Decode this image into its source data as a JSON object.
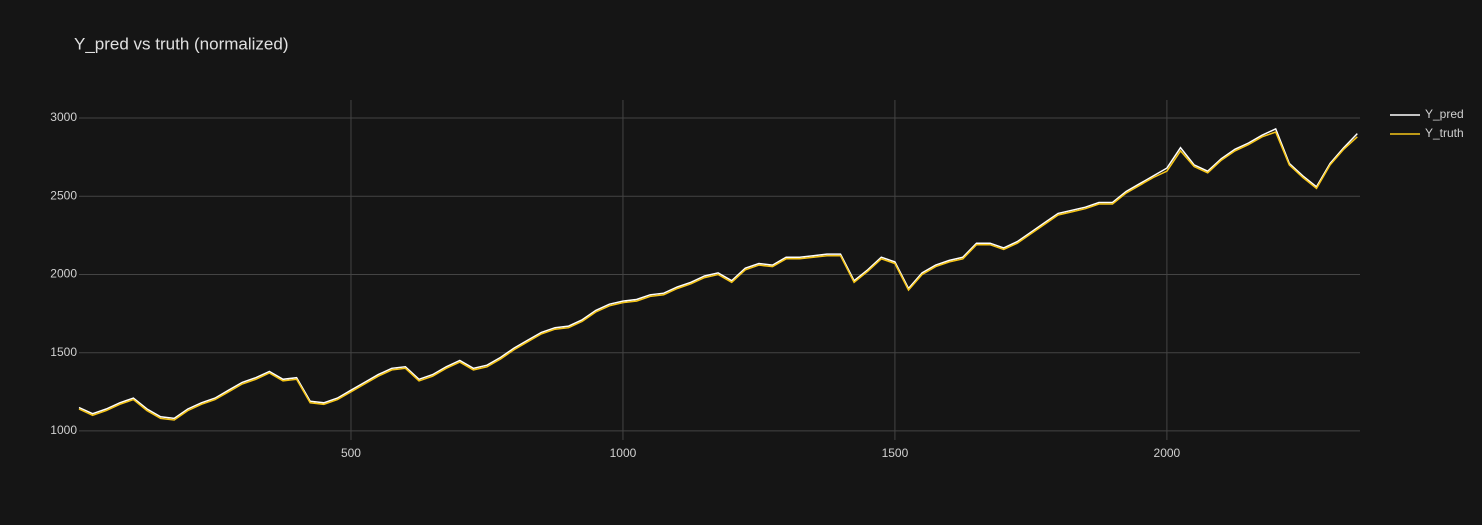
{
  "chart_data": {
    "type": "line",
    "title": "Y_pred vs truth (normalized)",
    "x": [
      0,
      25,
      50,
      75,
      100,
      125,
      150,
      175,
      200,
      225,
      250,
      275,
      300,
      325,
      350,
      375,
      400,
      425,
      450,
      475,
      500,
      525,
      550,
      575,
      600,
      625,
      650,
      675,
      700,
      725,
      750,
      775,
      800,
      825,
      850,
      875,
      900,
      925,
      950,
      975,
      1000,
      1025,
      1050,
      1075,
      1100,
      1125,
      1150,
      1175,
      1200,
      1225,
      1250,
      1275,
      1300,
      1325,
      1350,
      1375,
      1400,
      1425,
      1450,
      1475,
      1500,
      1525,
      1550,
      1575,
      1600,
      1625,
      1650,
      1675,
      1700,
      1725,
      1750,
      1775,
      1800,
      1825,
      1850,
      1875,
      1900,
      1925,
      1950,
      1975,
      2000,
      2025,
      2050,
      2075,
      2100,
      2125,
      2150,
      2175,
      2200,
      2225,
      2250,
      2275,
      2300,
      2325,
      2350
    ],
    "series": [
      {
        "name": "Y_pred",
        "color": "#ffffff",
        "values": [
          1150,
          1110,
          1140,
          1180,
          1210,
          1140,
          1090,
          1080,
          1140,
          1180,
          1210,
          1260,
          1310,
          1340,
          1380,
          1330,
          1340,
          1190,
          1180,
          1210,
          1260,
          1310,
          1360,
          1400,
          1410,
          1330,
          1360,
          1410,
          1450,
          1400,
          1420,
          1470,
          1530,
          1580,
          1630,
          1660,
          1670,
          1710,
          1770,
          1810,
          1830,
          1840,
          1870,
          1880,
          1920,
          1950,
          1990,
          2010,
          1960,
          2040,
          2070,
          2060,
          2110,
          2110,
          2120,
          2130,
          2130,
          1960,
          2030,
          2110,
          2080,
          1910,
          2010,
          2060,
          2090,
          2110,
          2200,
          2200,
          2170,
          2210,
          2270,
          2330,
          2390,
          2410,
          2430,
          2460,
          2460,
          2530,
          2580,
          2630,
          2680,
          2810,
          2700,
          2660,
          2740,
          2800,
          2840,
          2890,
          2930,
          2710,
          2630,
          2560,
          2710,
          2810,
          2900
        ]
      },
      {
        "name": "Y_truth",
        "color": "#f5c518",
        "values": [
          1140,
          1100,
          1130,
          1170,
          1200,
          1130,
          1080,
          1070,
          1130,
          1170,
          1200,
          1250,
          1300,
          1330,
          1370,
          1320,
          1330,
          1180,
          1170,
          1200,
          1250,
          1300,
          1350,
          1390,
          1400,
          1320,
          1350,
          1400,
          1440,
          1390,
          1410,
          1460,
          1520,
          1570,
          1620,
          1650,
          1660,
          1700,
          1760,
          1800,
          1820,
          1830,
          1860,
          1870,
          1910,
          1940,
          1980,
          2000,
          1950,
          2030,
          2060,
          2050,
          2100,
          2100,
          2110,
          2120,
          2120,
          1950,
          2020,
          2100,
          2070,
          1900,
          2000,
          2050,
          2080,
          2100,
          2190,
          2190,
          2160,
          2200,
          2260,
          2320,
          2380,
          2400,
          2420,
          2450,
          2450,
          2520,
          2570,
          2620,
          2660,
          2790,
          2690,
          2650,
          2730,
          2790,
          2830,
          2880,
          2910,
          2700,
          2620,
          2550,
          2700,
          2800,
          2880
        ]
      }
    ],
    "xlim": [
      0,
      2355
    ],
    "ylim": [
      942,
      3115
    ],
    "xticks": [
      500,
      1000,
      1500,
      2000
    ],
    "yticks": [
      1000,
      1500,
      2000,
      2500,
      3000
    ],
    "grid": true,
    "legend": "top-right"
  }
}
